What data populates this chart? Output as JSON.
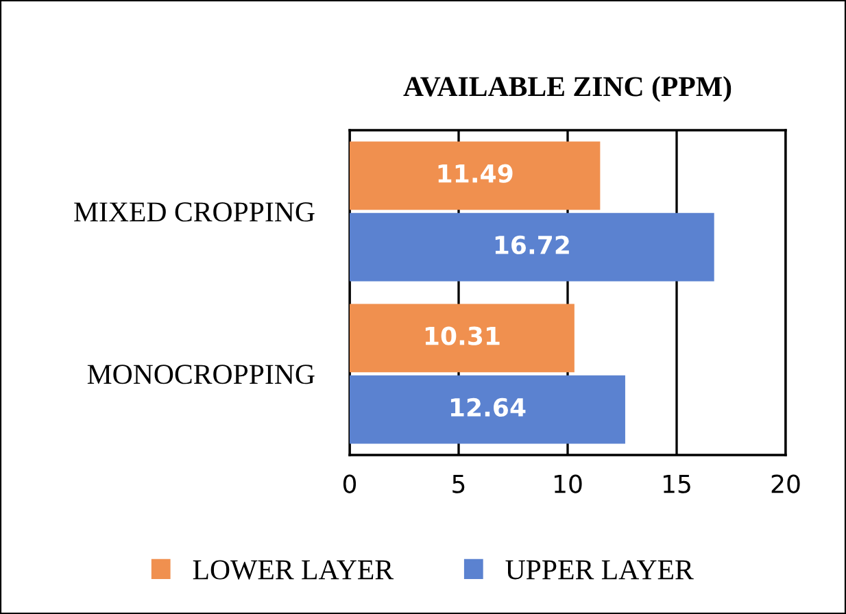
{
  "chart_data": {
    "type": "bar",
    "orientation": "horizontal",
    "title": "AVAILABLE ZINC (PPM)",
    "categories": [
      "MIXED CROPPING",
      "MONOCROPPING"
    ],
    "series": [
      {
        "name": "LOWER LAYER",
        "color": "#f0904f",
        "values": [
          11.49,
          10.31
        ]
      },
      {
        "name": "UPPER LAYER",
        "color": "#5b82d0",
        "values": [
          16.72,
          12.64
        ]
      }
    ],
    "xlim": [
      0,
      20
    ],
    "xticks": [
      0,
      5,
      10,
      15,
      20
    ],
    "grid": "x",
    "legend": "bottom",
    "data_labels": true
  }
}
